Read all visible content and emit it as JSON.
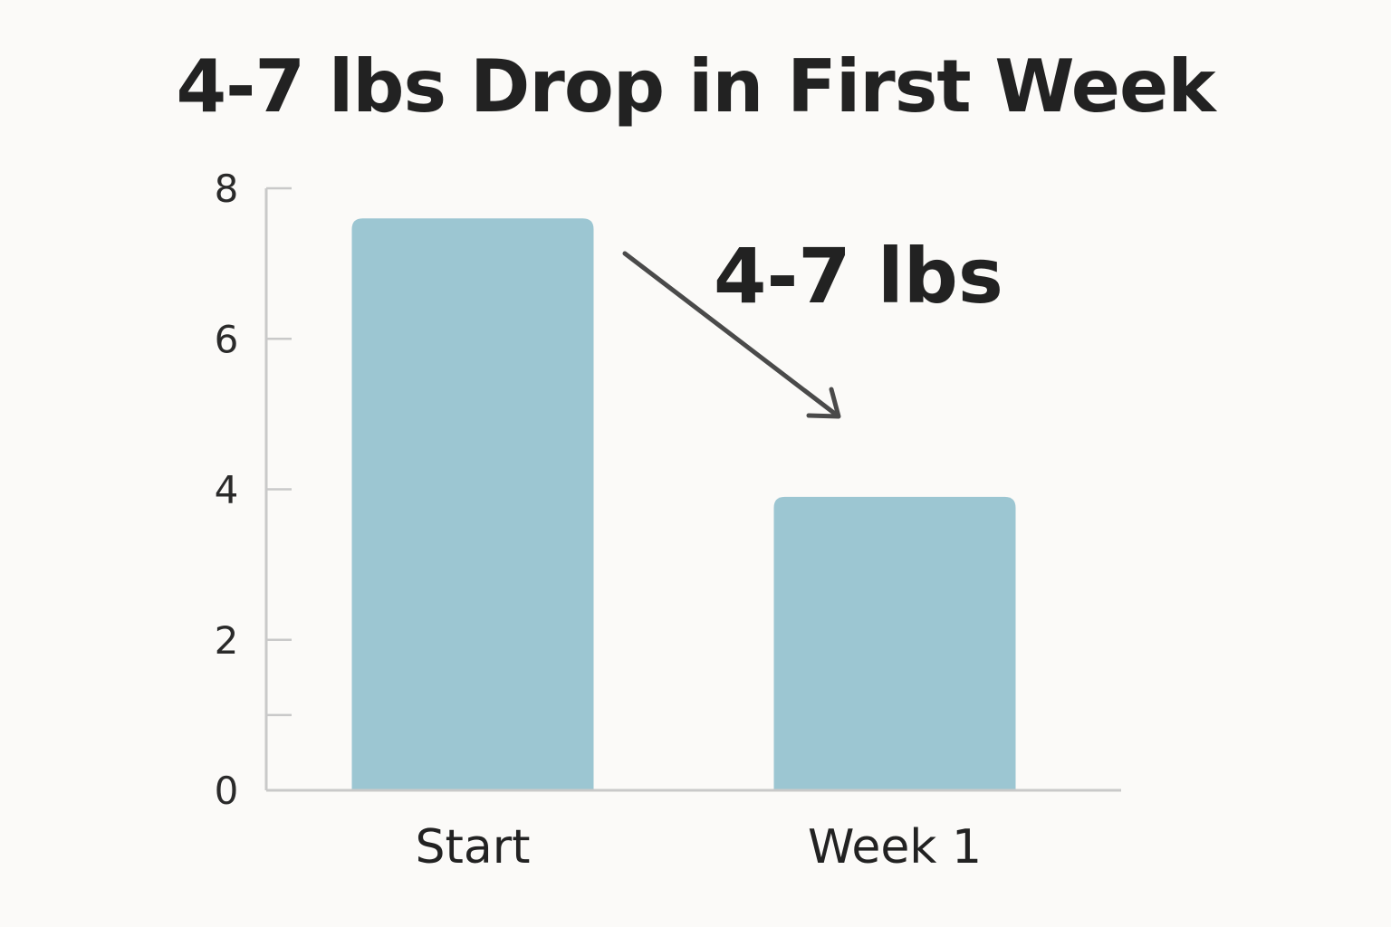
{
  "chart_data": {
    "type": "bar",
    "title": "4-7 lbs Drop in First Week",
    "xlabel": "",
    "ylabel": "",
    "categories": [
      "Start",
      "Week 1"
    ],
    "values": [
      7.6,
      3.9
    ],
    "ylim": [
      0,
      8
    ],
    "yticks": [
      0,
      2,
      4,
      6,
      8
    ],
    "ytick_labels": [
      "0",
      "2",
      "4",
      "6",
      "8"
    ],
    "extra_tick_values": [
      1
    ],
    "grid": false,
    "legend": "none",
    "annotation": {
      "text": "4-7 lbs",
      "arrow": {
        "from": "Start",
        "to": "Week 1"
      }
    },
    "colors": {
      "bar": "#9cc6d2",
      "axis": "#c9c9c9",
      "arrow": "#4a4a4a",
      "text": "#222222",
      "background": "#fbfaf8"
    }
  }
}
